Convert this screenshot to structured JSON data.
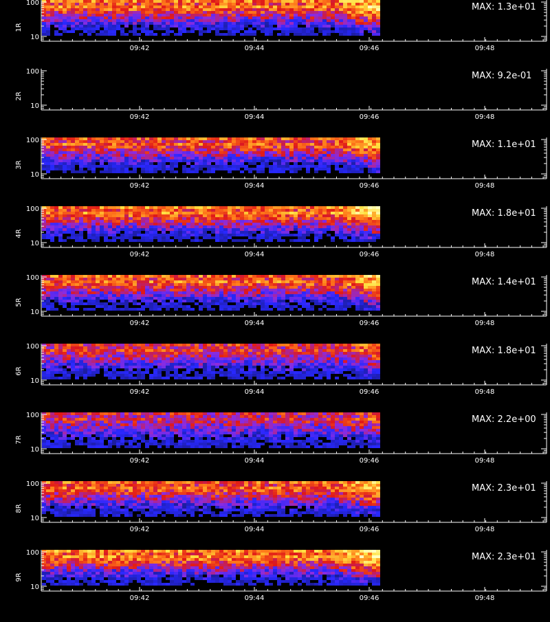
{
  "chart_data": {
    "type": "heatmap",
    "x_tick_labels": [
      "09:42",
      "09:44",
      "09:46",
      "09:48"
    ],
    "y_tick_labels": [
      "100",
      "10"
    ],
    "y_scale": "log",
    "colormap": [
      "#1a1a8c",
      "#2828ff",
      "#8c2ce0",
      "#e01818",
      "#ff7a1a",
      "#ffe040",
      "#ffffc0"
    ],
    "data_end_label": "09:46",
    "panels": [
      {
        "ylabel": "1R",
        "max_label": "MAX: 1.3e+01",
        "has_data": true,
        "intensity": 0.75
      },
      {
        "ylabel": "2R",
        "max_label": "MAX: 9.2e-01",
        "has_data": false,
        "intensity": 0.0
      },
      {
        "ylabel": "3R",
        "max_label": "MAX: 1.1e+01",
        "has_data": true,
        "intensity": 0.65
      },
      {
        "ylabel": "4R",
        "max_label": "MAX: 1.8e+01",
        "has_data": true,
        "intensity": 0.8
      },
      {
        "ylabel": "5R",
        "max_label": "MAX: 1.4e+01",
        "has_data": true,
        "intensity": 0.7
      },
      {
        "ylabel": "6R",
        "max_label": "MAX: 1.8e+01",
        "has_data": true,
        "intensity": 0.45
      },
      {
        "ylabel": "7R",
        "max_label": "MAX: 2.2e+00",
        "has_data": true,
        "intensity": 0.35
      },
      {
        "ylabel": "8R",
        "max_label": "MAX: 2.3e+01",
        "has_data": true,
        "intensity": 0.7
      },
      {
        "ylabel": "9R",
        "max_label": "MAX: 2.3e+01",
        "has_data": true,
        "intensity": 0.85
      }
    ]
  }
}
